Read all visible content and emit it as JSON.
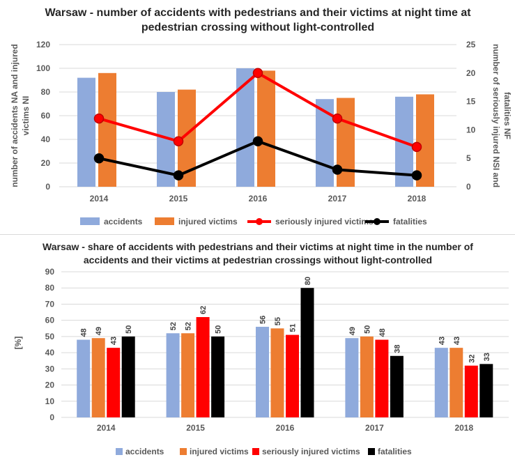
{
  "colors": {
    "accidents": "#8faadc",
    "injured": "#ed7d31",
    "serious": "#ff0000",
    "fatalities": "#000000",
    "grid": "#d9d9d9",
    "text": "#595959"
  },
  "chart_data": [
    {
      "type": "bar+line",
      "title": "Warsaw - number of accidents with pedestrians and their victims at night time at pedestrian crossing without light-controlled",
      "categories": [
        "2014",
        "2015",
        "2016",
        "2017",
        "2018"
      ],
      "ylabel_left": "number of accidents NA and injured victims NI",
      "ylabel_right": "number of seriously injured NSI and fatalities NF",
      "ylim_left": [
        0,
        120
      ],
      "yticks_left": [
        0,
        20,
        40,
        60,
        80,
        100,
        120
      ],
      "ylim_right": [
        0,
        25
      ],
      "yticks_right": [
        0,
        5,
        10,
        15,
        20,
        25
      ],
      "grid": true,
      "legend_position": "bottom",
      "series": [
        {
          "name": "accidents",
          "kind": "bar",
          "axis": "left",
          "color": "#8faadc",
          "values": [
            92,
            80,
            100,
            74,
            76
          ]
        },
        {
          "name": "injured victims",
          "kind": "bar",
          "axis": "left",
          "color": "#ed7d31",
          "values": [
            96,
            82,
            98,
            75,
            78
          ]
        },
        {
          "name": "seriously injured victims",
          "kind": "line",
          "axis": "right",
          "color": "#ff0000",
          "values": [
            12,
            8,
            20,
            12,
            7
          ]
        },
        {
          "name": "fatalities",
          "kind": "line",
          "axis": "right",
          "color": "#000000",
          "values": [
            5,
            2,
            8,
            3,
            2
          ]
        }
      ]
    },
    {
      "type": "bar",
      "title": "Warsaw - share of accidents with pedestrians and their victims at night time in the number of accidents and their victims at pedestrian crossings without light-controlled",
      "categories": [
        "2014",
        "2015",
        "2016",
        "2017",
        "2018"
      ],
      "ylabel": "[%]",
      "ylim": [
        0,
        90
      ],
      "yticks": [
        0,
        10,
        20,
        30,
        40,
        50,
        60,
        70,
        80,
        90
      ],
      "grid": true,
      "legend_position": "bottom",
      "series": [
        {
          "name": "accidents",
          "color": "#8faadc",
          "values": [
            48,
            52,
            56,
            49,
            43
          ]
        },
        {
          "name": "injured victims",
          "color": "#ed7d31",
          "values": [
            49,
            52,
            55,
            50,
            43
          ]
        },
        {
          "name": "seriously injured victims",
          "color": "#ff0000",
          "values": [
            43,
            62,
            51,
            48,
            32
          ]
        },
        {
          "name": "fatalities",
          "color": "#000000",
          "values": [
            50,
            50,
            80,
            38,
            33
          ]
        }
      ]
    }
  ]
}
